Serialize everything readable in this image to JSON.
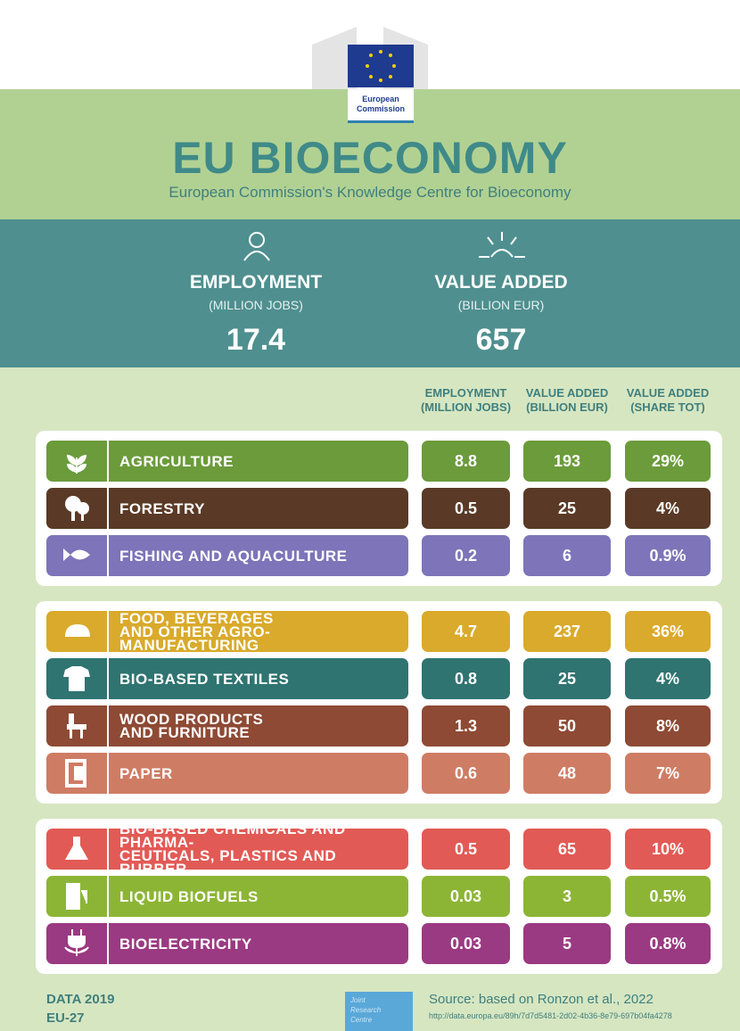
{
  "header": {
    "logo_text": [
      "European",
      "Commission"
    ],
    "title": "EU BIOECONOMY",
    "subtitle": "European Commission's Knowledge Centre for Bioeconomy"
  },
  "summary": [
    {
      "label": "EMPLOYMENT",
      "unit": "(MILLION JOBS)",
      "value": "17.4"
    },
    {
      "label": "VALUE ADDED",
      "unit": "(BILLION EUR)",
      "value": "657"
    }
  ],
  "columns": [
    [
      "EMPLOYMENT",
      "(MILLION JOBS)"
    ],
    [
      "VALUE ADDED",
      "(BILLION EUR)"
    ],
    [
      "VALUE ADDED",
      "(SHARE TOT)"
    ]
  ],
  "groups": [
    {
      "rows": [
        {
          "label": [
            "AGRICULTURE"
          ],
          "cells": [
            "8.8",
            "193",
            "29%"
          ],
          "color": "#6b9b3b"
        },
        {
          "label": [
            "FORESTRY"
          ],
          "cells": [
            "0.5",
            "25",
            "4%"
          ],
          "color": "#5a3a26"
        },
        {
          "label": [
            "FISHING AND AQUACULTURE"
          ],
          "cells": [
            "0.2",
            "6",
            "0.9%"
          ],
          "color": "#7d74b9"
        }
      ]
    },
    {
      "rows": [
        {
          "label": [
            "FOOD, BEVERAGES",
            "AND OTHER AGRO-MANUFACTURING"
          ],
          "cells": [
            "4.7",
            "237",
            "36%"
          ],
          "color": "#d9aa2b"
        },
        {
          "label": [
            "BIO-BASED TEXTILES"
          ],
          "cells": [
            "0.8",
            "25",
            "4%"
          ],
          "color": "#2f7471"
        },
        {
          "label": [
            "WOOD PRODUCTS",
            "AND FURNITURE"
          ],
          "cells": [
            "1.3",
            "50",
            "8%"
          ],
          "color": "#8e4a34"
        },
        {
          "label": [
            "PAPER"
          ],
          "cells": [
            "0.6",
            "48",
            "7%"
          ],
          "color": "#cf7c64"
        }
      ]
    },
    {
      "rows": [
        {
          "label": [
            "BIO-BASED CHEMICALS AND PHARMA-",
            "CEUTICALS, PLASTICS AND RUBBER"
          ],
          "cells": [
            "0.5",
            "65",
            "10%"
          ],
          "color": "#e25a55"
        },
        {
          "label": [
            "LIQUID BIOFUELS"
          ],
          "cells": [
            "0.03",
            "3",
            "0.5%"
          ],
          "color": "#8cb535"
        },
        {
          "label": [
            "BIOELECTRICITY"
          ],
          "cells": [
            "0.03",
            "5",
            "0.8%"
          ],
          "color": "#9a3a82"
        }
      ]
    }
  ],
  "footer": {
    "data_year": "DATA 2019",
    "region": "EU-27",
    "jrc": [
      "Joint",
      "Research",
      "Centre"
    ],
    "source": "Source: based on Ronzon et al., 2022",
    "url": "http://data.europa.eu/89h/7d7d5481-2d02-4b36-8e79-697b04fa4278"
  }
}
